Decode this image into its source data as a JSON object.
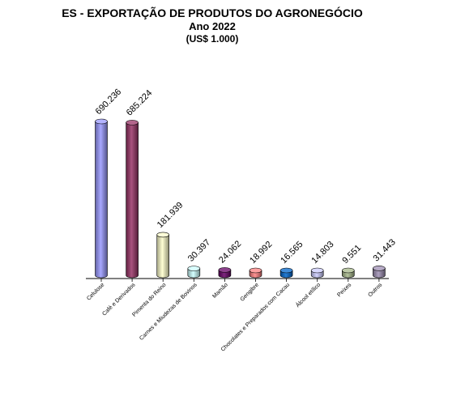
{
  "chart_data": {
    "type": "bar",
    "title": "ES - EXPORTAÇÃO DE PRODUTOS DO AGRONEGÓCIO",
    "subtitle": "Ano 2022",
    "unit_label": "(US$ 1.000)",
    "categories": [
      "Celulose",
      "Café e Derivados",
      "Pimenta do Reino",
      "Carnes e Miudezas de Bovinos",
      "Mamão",
      "Gengibre",
      "Chocolates e Preparados com Cacau",
      "Álcool etílico",
      "Peixes",
      "Outros"
    ],
    "values": [
      690236,
      685224,
      181939,
      30397,
      24062,
      18992,
      16565,
      14803,
      9551,
      31443
    ],
    "value_labels": [
      "690.236",
      "685.224",
      "181.939",
      "30.397",
      "24.062",
      "18.992",
      "16.565",
      "14.803",
      "9.551",
      "31.443"
    ],
    "colors": [
      "#9999ff",
      "#993366",
      "#ffffcc",
      "#ccffff",
      "#660066",
      "#ff8080",
      "#0066cc",
      "#ccccff",
      "#a7b88a",
      "#9f8fb4"
    ],
    "xlabel": "",
    "ylabel": "",
    "ylim": [
      0,
      700000
    ],
    "grid": false,
    "legend": "none",
    "bar_style": "3d-cylinder"
  }
}
